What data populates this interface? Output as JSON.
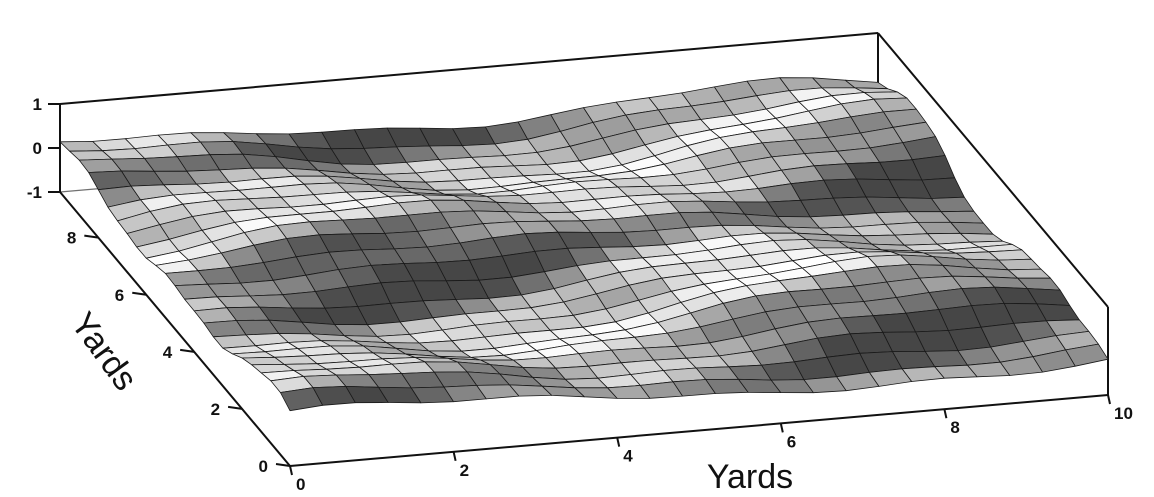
{
  "chart_data": {
    "type": "surface",
    "title": "",
    "xlabel": "Yards",
    "ylabel": "Yards",
    "zlabel": "",
    "xlim": [
      0,
      10
    ],
    "ylim": [
      0,
      9.6
    ],
    "zlim": [
      -1,
      1
    ],
    "x_ticks": [
      "0",
      "2",
      "4",
      "6",
      "8",
      "10"
    ],
    "y_ticks": [
      "0",
      "2",
      "4",
      "6",
      "8"
    ],
    "z_ticks": [
      "-1",
      "0",
      "1"
    ],
    "grid": false,
    "colormap": "grayscale",
    "surface": {
      "description": "wavy terrain surface, mesh resolution 0.4 yards",
      "x_step": 0.4,
      "y_step": 0.4,
      "z_range": [
        -0.45,
        0.35
      ]
    }
  }
}
